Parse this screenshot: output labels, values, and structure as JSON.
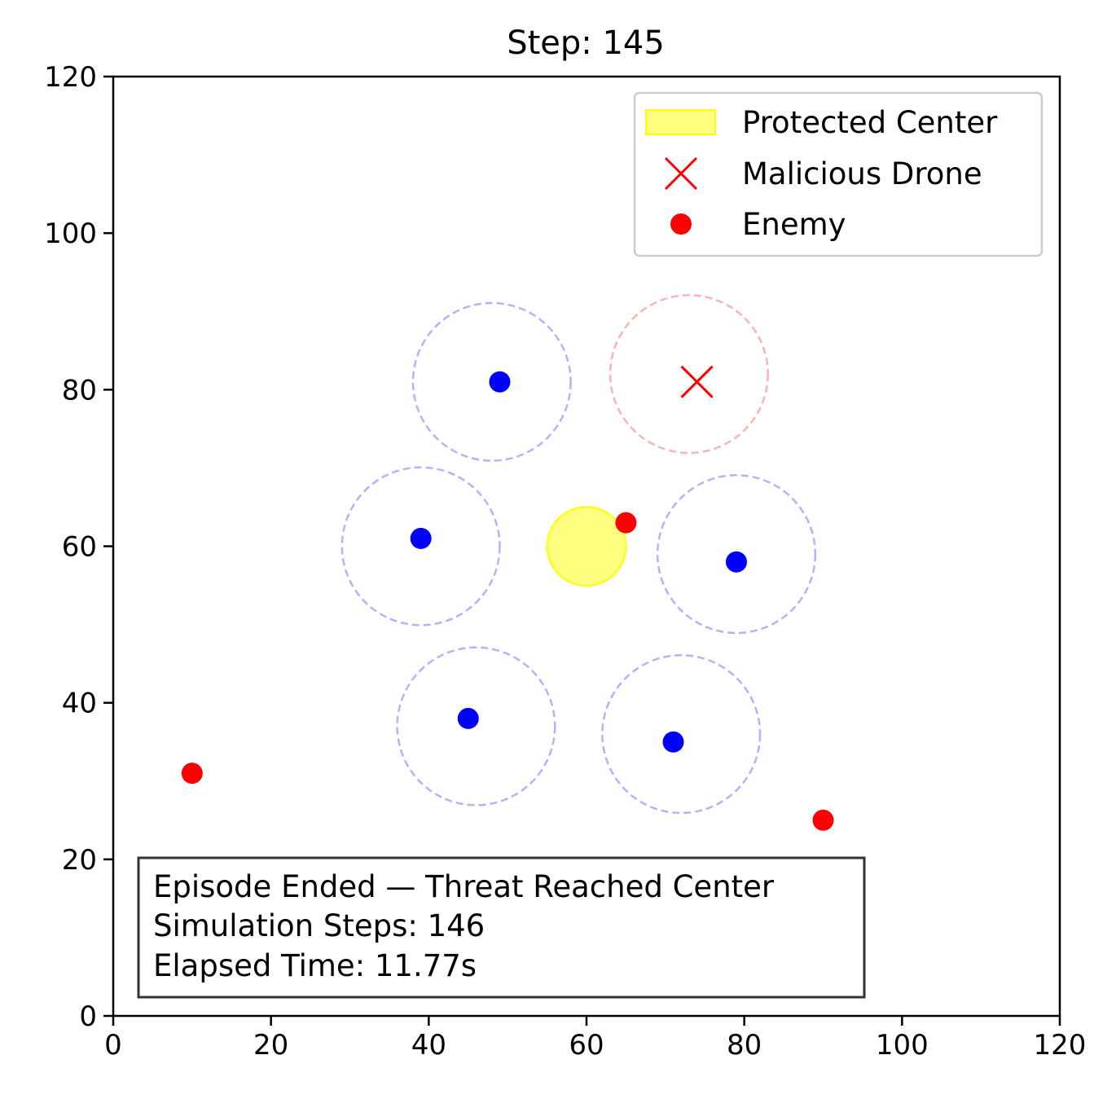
{
  "chart_data": {
    "type": "scatter",
    "title": "Step: 145",
    "xlabel": "",
    "ylabel": "",
    "xlim": [
      0,
      120
    ],
    "ylim": [
      0,
      120
    ],
    "x_ticks": [
      "0",
      "20",
      "40",
      "60",
      "80",
      "100",
      "120"
    ],
    "y_ticks": [
      "0",
      "20",
      "40",
      "60",
      "80",
      "100",
      "120"
    ],
    "grid": false,
    "legend_placement": "top-right",
    "legend": [
      {
        "key": "protected",
        "label": "Protected Center",
        "marker": "filled-patch",
        "color": "#ffff00"
      },
      {
        "key": "malicious",
        "label": "Malicious Drone",
        "marker": "x",
        "color": "#ff0000"
      },
      {
        "key": "enemy",
        "label": "Enemy",
        "marker": "dot",
        "color": "#ff0000"
      }
    ],
    "protected_center": {
      "x": 60,
      "y": 60,
      "radius": 5,
      "color": "#ffff00"
    },
    "malicious_drone": {
      "x": 74,
      "y": 81,
      "range_center": [
        73,
        82
      ],
      "range_radius": 10,
      "color": "#ff0000"
    },
    "enemies": [
      {
        "x": 65,
        "y": 63
      },
      {
        "x": 10,
        "y": 31
      },
      {
        "x": 90,
        "y": 25
      }
    ],
    "defenders": [
      {
        "x": 49,
        "y": 81,
        "range_center": [
          48,
          81
        ],
        "range_radius": 10
      },
      {
        "x": 39,
        "y": 61,
        "range_center": [
          39,
          60
        ],
        "range_radius": 10
      },
      {
        "x": 79,
        "y": 58,
        "range_center": [
          79,
          59
        ],
        "range_radius": 10
      },
      {
        "x": 45,
        "y": 38,
        "range_center": [
          46,
          37
        ],
        "range_radius": 10
      },
      {
        "x": 71,
        "y": 35,
        "range_center": [
          72,
          36
        ],
        "range_radius": 10
      }
    ],
    "defender_color": "#0000ff",
    "info_box": {
      "lines": [
        "Episode Ended — Threat Reached Center",
        "Simulation Steps: 146",
        "Elapsed Time: 11.77s"
      ]
    }
  }
}
